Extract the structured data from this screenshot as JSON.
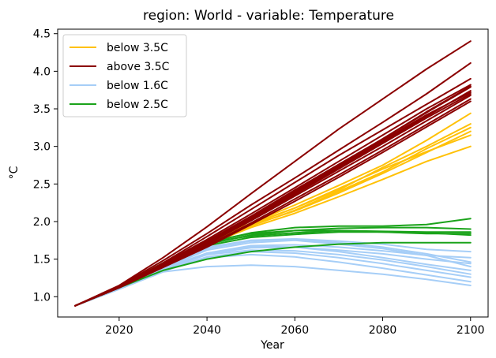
{
  "chart_data": {
    "type": "line",
    "title": "region: World - variable: Temperature",
    "xlabel": "Year",
    "ylabel": "°C",
    "xlim": [
      2006,
      2104
    ],
    "ylim": [
      0.73,
      4.56
    ],
    "xticks": [
      2020,
      2040,
      2060,
      2080,
      2100
    ],
    "yticks": [
      1.0,
      1.5,
      2.0,
      2.5,
      3.0,
      3.5,
      4.0,
      4.5
    ],
    "x": [
      2010,
      2020,
      2030,
      2040,
      2050,
      2060,
      2070,
      2080,
      2090,
      2100
    ],
    "legend": {
      "placement": "top-left",
      "entries": [
        {
          "label": "below 3.5C",
          "color": "#ffc107"
        },
        {
          "label": "above 3.5C",
          "color": "#8b0000"
        },
        {
          "label": "below 1.6C",
          "color": "#a6cef7"
        },
        {
          "label": "below 2.5C",
          "color": "#1aa31a"
        }
      ]
    },
    "series": [
      {
        "group": "below 1.6C",
        "color": "#a6cef7",
        "values": [
          0.88,
          1.12,
          1.38,
          1.62,
          1.72,
          1.75,
          1.7,
          1.64,
          1.55,
          1.4
        ]
      },
      {
        "group": "below 1.6C",
        "color": "#a6cef7",
        "values": [
          0.88,
          1.12,
          1.4,
          1.64,
          1.74,
          1.76,
          1.72,
          1.66,
          1.57,
          1.46
        ]
      },
      {
        "group": "below 1.6C",
        "color": "#a6cef7",
        "values": [
          0.88,
          1.11,
          1.36,
          1.58,
          1.68,
          1.69,
          1.66,
          1.61,
          1.55,
          1.52
        ]
      },
      {
        "group": "below 1.6C",
        "color": "#a6cef7",
        "values": [
          0.88,
          1.13,
          1.4,
          1.66,
          1.75,
          1.77,
          1.74,
          1.7,
          1.63,
          1.6
        ]
      },
      {
        "group": "below 1.6C",
        "color": "#a6cef7",
        "values": [
          0.88,
          1.11,
          1.37,
          1.57,
          1.65,
          1.66,
          1.62,
          1.57,
          1.5,
          1.44
        ]
      },
      {
        "group": "below 1.6C",
        "color": "#a6cef7",
        "values": [
          0.88,
          1.11,
          1.36,
          1.56,
          1.62,
          1.61,
          1.56,
          1.49,
          1.4,
          1.3
        ]
      },
      {
        "group": "below 1.6C",
        "color": "#a6cef7",
        "values": [
          0.88,
          1.11,
          1.35,
          1.53,
          1.6,
          1.58,
          1.52,
          1.44,
          1.35,
          1.26
        ]
      },
      {
        "group": "below 1.6C",
        "color": "#a6cef7",
        "values": [
          0.88,
          1.1,
          1.34,
          1.52,
          1.56,
          1.53,
          1.46,
          1.38,
          1.29,
          1.2
        ]
      },
      {
        "group": "below 1.6C",
        "color": "#a6cef7",
        "values": [
          0.88,
          1.1,
          1.33,
          1.4,
          1.42,
          1.4,
          1.35,
          1.3,
          1.23,
          1.15
        ]
      },
      {
        "group": "below 1.6C",
        "color": "#a6cef7",
        "values": [
          0.88,
          1.12,
          1.38,
          1.58,
          1.67,
          1.66,
          1.6,
          1.52,
          1.43,
          1.35
        ]
      },
      {
        "group": "below 2.5C",
        "color": "#1aa31a",
        "values": [
          0.88,
          1.13,
          1.45,
          1.72,
          1.85,
          1.92,
          1.94,
          1.94,
          1.96,
          2.04
        ]
      },
      {
        "group": "below 2.5C",
        "color": "#1aa31a",
        "values": [
          0.88,
          1.13,
          1.44,
          1.7,
          1.82,
          1.88,
          1.91,
          1.92,
          1.92,
          1.9
        ]
      },
      {
        "group": "below 2.5C",
        "color": "#1aa31a",
        "values": [
          0.88,
          1.13,
          1.45,
          1.73,
          1.84,
          1.88,
          1.88,
          1.86,
          1.84,
          1.84
        ]
      },
      {
        "group": "below 2.5C",
        "color": "#1aa31a",
        "values": [
          0.88,
          1.13,
          1.44,
          1.72,
          1.81,
          1.85,
          1.88,
          1.87,
          1.86,
          1.86
        ]
      },
      {
        "group": "below 2.5C",
        "color": "#1aa31a",
        "values": [
          0.88,
          1.12,
          1.42,
          1.68,
          1.79,
          1.83,
          1.86,
          1.86,
          1.85,
          1.82
        ]
      },
      {
        "group": "below 2.5C",
        "color": "#1aa31a",
        "values": [
          0.88,
          1.12,
          1.35,
          1.5,
          1.6,
          1.66,
          1.7,
          1.72,
          1.72,
          1.72
        ]
      },
      {
        "group": "below 3.5C",
        "color": "#ffc107",
        "values": [
          0.88,
          1.13,
          1.44,
          1.73,
          1.97,
          2.18,
          2.42,
          2.72,
          3.0,
          3.3
        ]
      },
      {
        "group": "below 3.5C",
        "color": "#ffc107",
        "values": [
          0.88,
          1.13,
          1.42,
          1.71,
          1.95,
          2.14,
          2.38,
          2.64,
          2.92,
          3.2
        ]
      },
      {
        "group": "below 3.5C",
        "color": "#ffc107",
        "values": [
          0.88,
          1.13,
          1.41,
          1.69,
          1.92,
          2.11,
          2.33,
          2.56,
          2.8,
          3.0
        ]
      },
      {
        "group": "below 3.5C",
        "color": "#ffc107",
        "values": [
          0.88,
          1.13,
          1.42,
          1.72,
          1.98,
          2.22,
          2.48,
          2.75,
          3.08,
          3.44
        ]
      },
      {
        "group": "below 3.5C",
        "color": "#ffc107",
        "values": [
          0.88,
          1.13,
          1.43,
          1.72,
          1.96,
          2.18,
          2.44,
          2.7,
          2.93,
          3.15
        ]
      },
      {
        "group": "below 3.5C",
        "color": "#ffc107",
        "values": [
          0.88,
          1.13,
          1.42,
          1.7,
          1.94,
          2.15,
          2.4,
          2.66,
          2.97,
          3.25
        ]
      },
      {
        "group": "above 3.5C",
        "color": "#8b0000",
        "values": [
          0.88,
          1.15,
          1.52,
          1.93,
          2.37,
          2.8,
          3.23,
          3.63,
          4.03,
          4.4
        ]
      },
      {
        "group": "above 3.5C",
        "color": "#8b0000",
        "values": [
          0.88,
          1.14,
          1.48,
          1.84,
          2.22,
          2.58,
          2.95,
          3.32,
          3.7,
          4.11
        ]
      },
      {
        "group": "above 3.5C",
        "color": "#8b0000",
        "values": [
          0.88,
          1.13,
          1.45,
          1.8,
          2.16,
          2.52,
          2.88,
          3.22,
          3.56,
          3.9
        ]
      },
      {
        "group": "above 3.5C",
        "color": "#8b0000",
        "values": [
          0.88,
          1.13,
          1.44,
          1.76,
          2.1,
          2.45,
          2.8,
          3.15,
          3.5,
          3.82
        ]
      },
      {
        "group": "above 3.5C",
        "color": "#8b0000",
        "values": [
          0.88,
          1.13,
          1.43,
          1.74,
          2.07,
          2.42,
          2.76,
          3.1,
          3.45,
          3.79
        ]
      },
      {
        "group": "above 3.5C",
        "color": "#8b0000",
        "values": [
          0.88,
          1.13,
          1.42,
          1.72,
          2.04,
          2.38,
          2.72,
          3.06,
          3.4,
          3.74
        ]
      },
      {
        "group": "above 3.5C",
        "color": "#8b0000",
        "values": [
          0.88,
          1.13,
          1.41,
          1.7,
          2.01,
          2.34,
          2.67,
          3.0,
          3.34,
          3.68
        ]
      },
      {
        "group": "above 3.5C",
        "color": "#8b0000",
        "values": [
          0.88,
          1.13,
          1.4,
          1.68,
          1.98,
          2.3,
          2.62,
          2.95,
          3.29,
          3.63
        ]
      },
      {
        "group": "above 3.5C",
        "color": "#8b0000",
        "values": [
          0.88,
          1.12,
          1.39,
          1.66,
          1.96,
          2.27,
          2.59,
          2.92,
          3.26,
          3.6
        ]
      },
      {
        "group": "above 3.5C",
        "color": "#8b0000",
        "values": [
          0.88,
          1.12,
          1.4,
          1.7,
          2.02,
          2.38,
          2.74,
          3.1,
          3.46,
          3.8
        ]
      },
      {
        "group": "above 3.5C",
        "color": "#8b0000",
        "values": [
          0.88,
          1.13,
          1.42,
          1.73,
          2.05,
          2.4,
          2.74,
          3.08,
          3.42,
          3.72
        ]
      },
      {
        "group": "above 3.5C",
        "color": "#8b0000",
        "values": [
          0.88,
          1.13,
          1.41,
          1.71,
          2.03,
          2.36,
          2.7,
          3.04,
          3.38,
          3.7
        ]
      }
    ]
  }
}
